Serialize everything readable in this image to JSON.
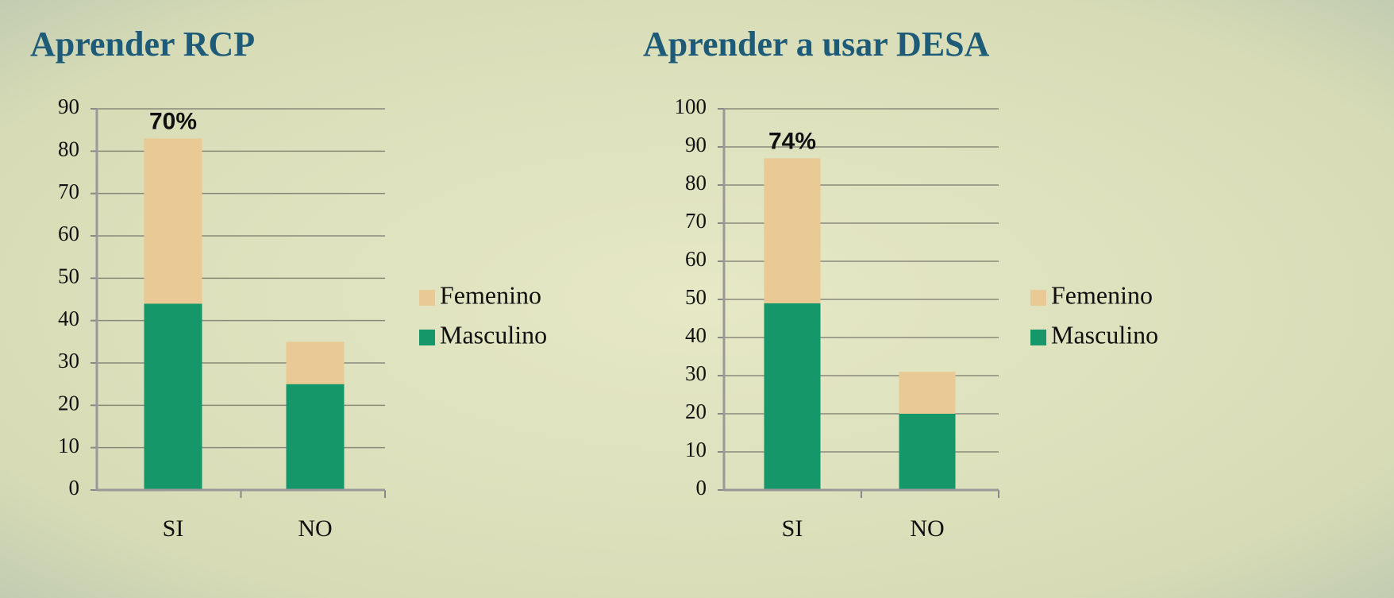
{
  "chart_data": [
    {
      "type": "bar",
      "stacked": true,
      "title": "Aprender RCP",
      "categories": [
        "SI",
        "NO"
      ],
      "series": [
        {
          "name": "Masculino",
          "color": "#16976a",
          "values": [
            44,
            25
          ]
        },
        {
          "name": "Femenino",
          "color": "#e9c994",
          "values": [
            39,
            10
          ]
        }
      ],
      "ylim": [
        0,
        90
      ],
      "yticks": [
        0,
        10,
        20,
        30,
        40,
        50,
        60,
        70,
        80,
        90
      ],
      "grid": true,
      "legend": "right",
      "annotation": "70%"
    },
    {
      "type": "bar",
      "stacked": true,
      "title": "Aprender a usar DESA",
      "categories": [
        "SI",
        "NO"
      ],
      "series": [
        {
          "name": "Masculino",
          "color": "#16976a",
          "values": [
            49,
            20
          ]
        },
        {
          "name": "Femenino",
          "color": "#e9c994",
          "values": [
            38,
            11
          ]
        }
      ],
      "ylim": [
        0,
        100
      ],
      "yticks": [
        0,
        10,
        20,
        30,
        40,
        50,
        60,
        70,
        80,
        90,
        100
      ],
      "grid": true,
      "legend": "right",
      "annotation": "74%"
    }
  ]
}
